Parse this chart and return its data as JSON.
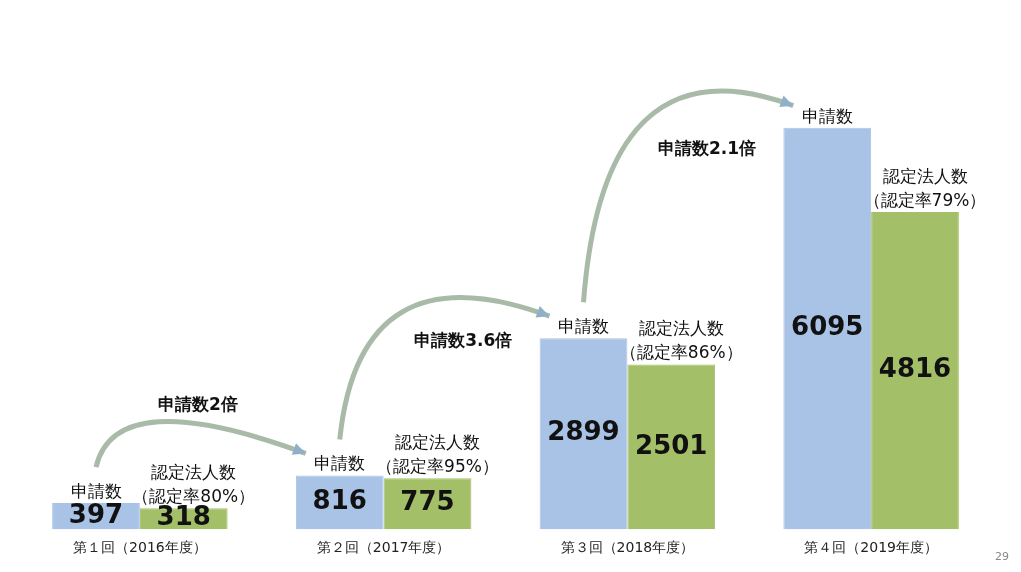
{
  "chart_data": {
    "type": "bar",
    "categories": [
      "第１回（2016年度）",
      "第２回（2017年度）",
      "第３回（2018年度）",
      "第４回（2019年度）"
    ],
    "series": [
      {
        "name": "申請数",
        "color": "#a9c3e6",
        "values": [
          397,
          816,
          2899,
          6095
        ]
      },
      {
        "name": "認定法人数",
        "color": "#a3bf68",
        "values": [
          318,
          775,
          2501,
          4816
        ]
      }
    ],
    "tick_labels": "x",
    "grid": false,
    "legend": false,
    "data_labels": true,
    "annotations": [
      {
        "text": "（認定率80%）",
        "x": "第１回（2016年度）",
        "y": 318
      },
      {
        "text": "（認定率95%）",
        "x": "第２回（2017年度）",
        "y": 775
      },
      {
        "text": "（認定率86%）",
        "x": "第３回（2018年度）",
        "y": 2501
      },
      {
        "text": "（認定率79%）",
        "x": "第４回（2019年度）",
        "y": 4816
      },
      "申請数2倍",
      "申請数3.6倍",
      "申請数2.1倍",
      "29"
    ]
  }
}
